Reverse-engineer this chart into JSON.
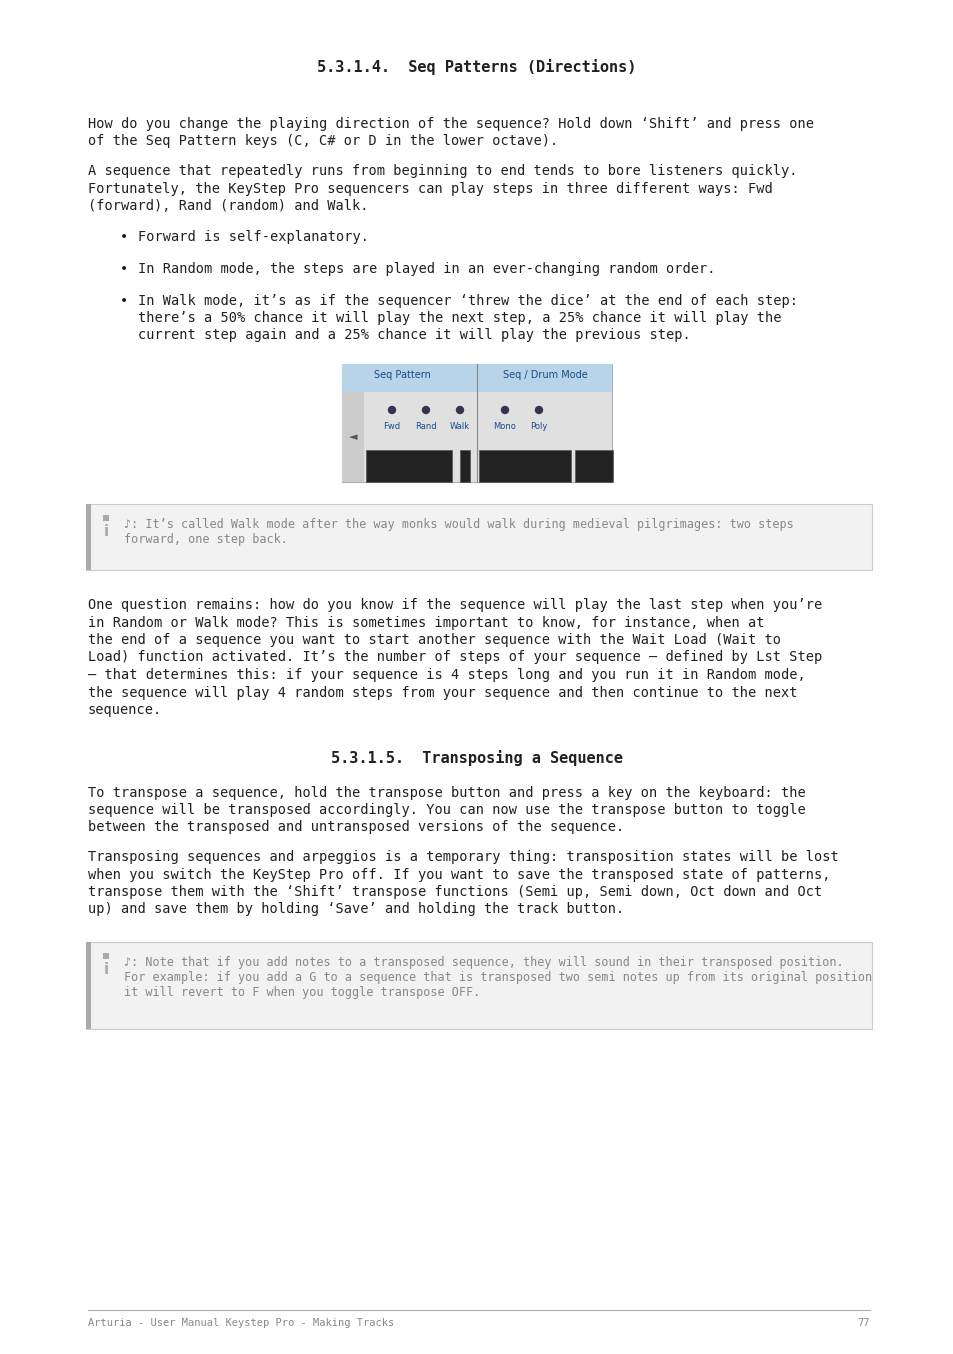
{
  "title": "5.3.1.4.  Seq Patterns (Directions)",
  "subtitle2": "5.3.1.5.  Transposing a Sequence",
  "bg_color": "#ffffff",
  "page_number": "77",
  "footer_text": "Arturia - User Manual Keystep Pro - Making Tracks",
  "para1": "How do you change the playing direction of the sequence? Hold down ‘Shift’ and press one of the Seq Pattern keys (C, C# or D in the lower octave).",
  "para2": "A sequence that repeatedly runs from beginning to end tends to bore listeners quickly. Fortunately, the KeyStep Pro sequencers can play steps in three different ways: Fwd (forward), Rand (random) and Walk.",
  "bullet1": "Forward is self-explanatory.",
  "bullet2": "In Random mode, the steps are played in an ever-changing random order.",
  "bullet3": "In Walk mode, it’s as if the sequencer ‘threw the dice’ at the end of each step: there’s a 50% chance it will play the next step, a 25% chance it will play the current step again and a 25% chance it will play the previous step.",
  "note1_line1": "♪: It’s called Walk mode after the way monks would walk during medieval pilgrimages: two steps",
  "note1_line2": "forward, one step back.",
  "para3_lines": [
    "One question remains: how do you know if the sequence will play the last step when you’re",
    "in Random or Walk mode? This is sometimes important to know, for instance, when at",
    "the end of a sequence you want to start another sequence with the Wait Load (Wait to",
    "Load) function activated. It’s the number of steps of your sequence – defined by Lst Step",
    "– that determines this: if your sequence is 4 steps long and you run it in Random mode,",
    "the sequence will play 4 random steps from your sequence and then continue to the next",
    "sequence."
  ],
  "para4_lines": [
    "To transpose a sequence, hold the transpose button and press a key on the keyboard: the",
    "sequence will be transposed accordingly. You can now use the transpose button to toggle",
    "between the transposed and untransposed versions of the sequence."
  ],
  "para5_lines": [
    "Transposing sequences and arpeggios is a temporary thing: transposition states will be lost",
    "when you switch the KeyStep Pro off. If you want to save the transposed state of patterns,",
    "transpose them with the ‘Shift’ transpose functions (Semi up, Semi down, Oct down and Oct",
    "up) and save them by holding ‘Save’ and holding the track button."
  ],
  "note2_line1": "♪: Note that if you add notes to a transposed sequence, they will sound in their transposed position.",
  "note2_line2": "For example: if you add a G to a sequence that is transposed two semi notes up from its original position",
  "note2_line3": "it will revert to F when you toggle transpose OFF.",
  "text_color": "#231f20",
  "note_text_color": "#888888",
  "note_bg": "#f2f2f2",
  "note_border": "#cccccc",
  "accent_color": "#aaaaaa"
}
